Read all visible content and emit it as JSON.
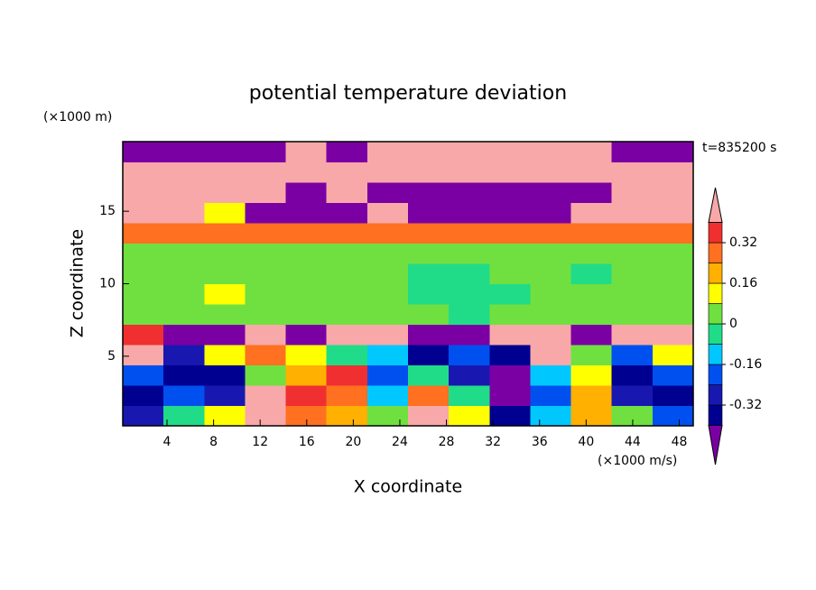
{
  "chart_data": {
    "type": "contourf",
    "title": "potential temperature deviation",
    "xlabel": "X coordinate",
    "ylabel": "Z coordinate",
    "x_unit": "(×1000 m/s)",
    "y_unit": "(×1000 m)",
    "annotation": "t=835200 s",
    "xlim": [
      0.2,
      49.2
    ],
    "ylim": [
      0.2,
      19.8
    ],
    "xticks": [
      4,
      8,
      12,
      16,
      20,
      24,
      28,
      32,
      36,
      40,
      44,
      48
    ],
    "yticks": [
      5,
      10,
      15
    ],
    "x_edges": [
      0.2,
      3.7,
      7.2,
      10.7,
      14.2,
      17.7,
      21.2,
      24.7,
      28.2,
      31.7,
      35.2,
      38.7,
      42.2,
      45.7,
      49.2
    ],
    "y_edges": [
      0.2,
      1.6,
      3.0,
      4.4,
      5.8,
      7.2,
      8.6,
      10.0,
      11.4,
      12.8,
      14.2,
      15.6,
      17.0,
      18.4,
      19.8
    ],
    "z": [
      [
        -0.28,
        -0.04,
        0.12,
        0.5,
        0.28,
        0.2,
        0.04,
        0.5,
        0.12,
        -0.36,
        -0.12,
        0.2,
        0.04,
        -0.2
      ],
      [
        -0.36,
        -0.2,
        -0.28,
        0.5,
        0.36,
        0.28,
        -0.12,
        0.28,
        -0.04,
        -0.5,
        -0.2,
        0.2,
        -0.28,
        -0.36
      ],
      [
        -0.2,
        -0.36,
        -0.36,
        0.04,
        0.2,
        0.36,
        -0.2,
        -0.04,
        -0.28,
        -0.5,
        -0.12,
        0.12,
        -0.36,
        -0.2
      ],
      [
        0.5,
        -0.28,
        0.12,
        0.28,
        0.12,
        -0.04,
        -0.12,
        -0.36,
        -0.2,
        -0.36,
        0.5,
        0.04,
        -0.2,
        0.12
      ],
      [
        0.36,
        -0.5,
        -0.5,
        0.5,
        -0.5,
        0.5,
        0.5,
        -0.5,
        -0.5,
        0.5,
        0.5,
        -0.5,
        0.5,
        0.5
      ],
      [
        0.04,
        0.04,
        0.04,
        0.04,
        0.04,
        0.04,
        0.04,
        0.04,
        -0.04,
        0.04,
        0.04,
        0.04,
        0.04,
        0.04
      ],
      [
        0.04,
        0.04,
        0.12,
        0.04,
        0.04,
        0.04,
        0.04,
        -0.04,
        -0.04,
        -0.04,
        0.04,
        0.04,
        0.04,
        0.04
      ],
      [
        0.04,
        0.04,
        0.04,
        0.04,
        0.04,
        0.04,
        0.04,
        -0.04,
        -0.04,
        0.04,
        0.04,
        -0.04,
        0.04,
        0.04
      ],
      [
        0.04,
        0.04,
        0.04,
        0.04,
        0.04,
        0.04,
        0.04,
        0.04,
        0.04,
        0.04,
        0.04,
        0.04,
        0.04,
        0.04
      ],
      [
        0.28,
        0.28,
        0.28,
        0.28,
        0.28,
        0.28,
        0.28,
        0.28,
        0.28,
        0.28,
        0.28,
        0.28,
        0.28,
        0.28
      ],
      [
        0.5,
        0.5,
        0.12,
        -0.5,
        -0.5,
        -0.5,
        0.5,
        -0.5,
        -0.5,
        -0.5,
        -0.5,
        0.5,
        0.5,
        0.5
      ],
      [
        0.5,
        0.5,
        0.5,
        0.5,
        -0.5,
        0.5,
        -0.5,
        -0.5,
        -0.5,
        -0.5,
        -0.5,
        -0.5,
        0.5,
        0.5
      ],
      [
        0.5,
        0.5,
        0.5,
        0.5,
        0.5,
        0.5,
        0.5,
        0.5,
        0.5,
        0.5,
        0.5,
        0.5,
        0.5,
        0.5
      ],
      [
        -0.5,
        -0.5,
        -0.5,
        -0.5,
        0.5,
        -0.5,
        0.5,
        0.5,
        0.5,
        0.5,
        0.5,
        0.5,
        -0.5,
        -0.5
      ]
    ],
    "levels": [
      -0.4,
      -0.32,
      -0.24,
      -0.16,
      -0.08,
      0,
      0.08,
      0.16,
      0.24,
      0.32,
      0.4
    ],
    "colors": [
      "#7a00a4",
      "#000090",
      "#1818b0",
      "#0050f0",
      "#00c8ff",
      "#20dc88",
      "#70e040",
      "#ffff00",
      "#ffb000",
      "#ff7020",
      "#f03030",
      "#f8a8a8"
    ],
    "colorbar_ticks": [
      0.32,
      0.16,
      0,
      -0.16,
      -0.32
    ]
  }
}
